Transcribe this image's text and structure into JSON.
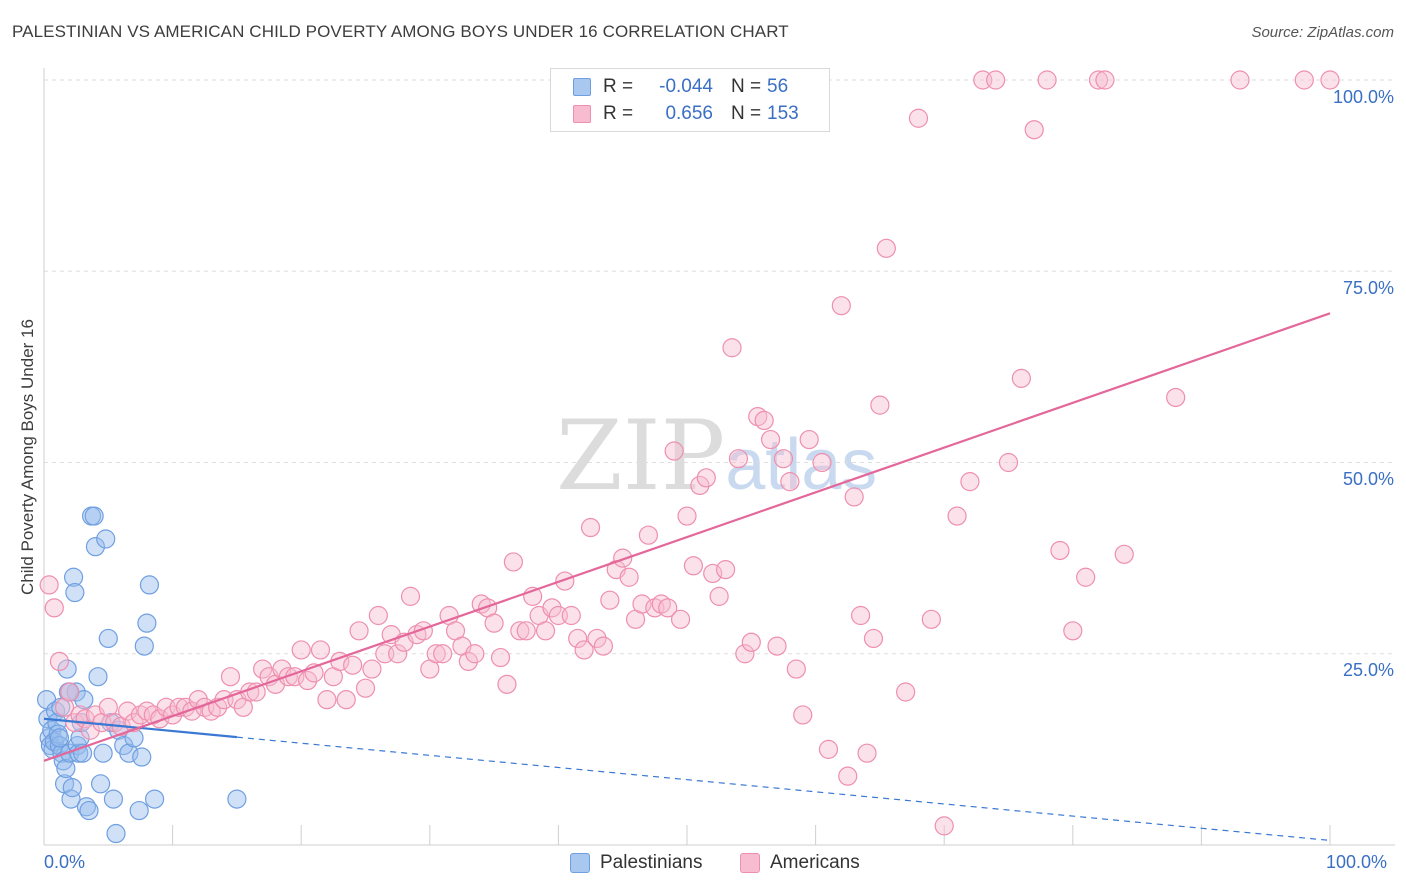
{
  "title": "PALESTINIAN VS AMERICAN CHILD POVERTY AMONG BOYS UNDER 16 CORRELATION CHART",
  "source": "Source: ZipAtlas.com",
  "watermark": {
    "zip": "ZIP",
    "atlas": "atlas"
  },
  "legend": {
    "rows": [
      {
        "r_label": "R =",
        "r_value": "-0.044",
        "n_label": "N =",
        "n_value": "56",
        "color": "#a9c8f0",
        "border": "#6f9fe0"
      },
      {
        "r_label": "R =",
        "r_value": "0.656",
        "n_label": "N =",
        "n_value": "153",
        "color": "#f7bcd0",
        "border": "#ee8fae"
      }
    ]
  },
  "bottom_legend": [
    {
      "label": "Palestinians",
      "color": "#a9c8f0",
      "border": "#6f9fe0"
    },
    {
      "label": "Americans",
      "color": "#f7bcd0",
      "border": "#ee8fae"
    }
  ],
  "chart_data": {
    "type": "scatter",
    "title": "PALESTINIAN VS AMERICAN CHILD POVERTY AMONG BOYS UNDER 16 CORRELATION CHART",
    "xlabel": "",
    "ylabel": "Child Poverty Among Boys Under 16",
    "xlim": [
      0,
      100
    ],
    "ylim": [
      0,
      100
    ],
    "x_tick_labels": [
      "0.0%",
      "100.0%"
    ],
    "y_tick_labels": [
      "25.0%",
      "50.0%",
      "75.0%",
      "100.0%"
    ],
    "y_tick_values": [
      25,
      50,
      75,
      100
    ],
    "grid": true,
    "series": [
      {
        "name": "Palestinians",
        "color": "#6f9fe0",
        "fill": "rgba(150,188,238,0.45)",
        "trend": {
          "x0": 0,
          "y0": 16.5,
          "x1": 15,
          "y1": 14.1,
          "dashed_to_x": 100,
          "dashed_to_y": 0.6,
          "color": "#3a78d4"
        },
        "points": [
          [
            0.2,
            19
          ],
          [
            0.3,
            16.5
          ],
          [
            0.4,
            14
          ],
          [
            0.5,
            13
          ],
          [
            0.6,
            15
          ],
          [
            0.7,
            12.5
          ],
          [
            0.8,
            13.5
          ],
          [
            0.9,
            17.5
          ],
          [
            1.0,
            16
          ],
          [
            1.1,
            14.5
          ],
          [
            1.2,
            13
          ],
          [
            1.3,
            18
          ],
          [
            1.4,
            12
          ],
          [
            1.5,
            11
          ],
          [
            1.6,
            8
          ],
          [
            1.7,
            10
          ],
          [
            1.8,
            23
          ],
          [
            1.9,
            20
          ],
          [
            2.0,
            12
          ],
          [
            2.1,
            6
          ],
          [
            2.2,
            7.5
          ],
          [
            2.3,
            35
          ],
          [
            2.4,
            33
          ],
          [
            2.5,
            20
          ],
          [
            2.6,
            13
          ],
          [
            2.7,
            12
          ],
          [
            2.8,
            14
          ],
          [
            2.9,
            16
          ],
          [
            3.0,
            12
          ],
          [
            3.1,
            19
          ],
          [
            3.3,
            5
          ],
          [
            3.5,
            4.5
          ],
          [
            3.7,
            43
          ],
          [
            3.9,
            43
          ],
          [
            4.0,
            39
          ],
          [
            4.2,
            22
          ],
          [
            4.4,
            8
          ],
          [
            4.6,
            12
          ],
          [
            4.8,
            40
          ],
          [
            5.0,
            27
          ],
          [
            5.2,
            16
          ],
          [
            5.4,
            6
          ],
          [
            5.6,
            1.5
          ],
          [
            5.8,
            15
          ],
          [
            6.2,
            13
          ],
          [
            6.6,
            12
          ],
          [
            7.0,
            14
          ],
          [
            7.4,
            4.5
          ],
          [
            7.6,
            11.5
          ],
          [
            7.8,
            26
          ],
          [
            8.0,
            29
          ],
          [
            8.2,
            34
          ],
          [
            8.6,
            6
          ],
          [
            15.0,
            6
          ],
          [
            1.2,
            14
          ],
          [
            2.0,
            20
          ]
        ]
      },
      {
        "name": "Americans",
        "color": "#ee8fae",
        "fill": "rgba(247,188,208,0.45)",
        "trend": {
          "x0": 0,
          "y0": 11,
          "x1": 100,
          "y1": 69.5,
          "color": "#e4679a"
        },
        "points": [
          [
            0.4,
            34
          ],
          [
            0.8,
            31
          ],
          [
            1.2,
            24
          ],
          [
            1.6,
            18
          ],
          [
            2.0,
            20
          ],
          [
            2.4,
            16
          ],
          [
            2.8,
            17
          ],
          [
            3.2,
            16.5
          ],
          [
            3.6,
            15
          ],
          [
            4.0,
            17
          ],
          [
            4.5,
            16
          ],
          [
            5.0,
            18
          ],
          [
            5.5,
            16
          ],
          [
            6.0,
            15.5
          ],
          [
            6.5,
            17.5
          ],
          [
            7.0,
            16
          ],
          [
            7.5,
            17
          ],
          [
            8.0,
            17.5
          ],
          [
            8.5,
            17
          ],
          [
            9.0,
            16.5
          ],
          [
            9.5,
            18
          ],
          [
            10.0,
            17
          ],
          [
            10.5,
            18
          ],
          [
            11.0,
            18
          ],
          [
            11.5,
            17.5
          ],
          [
            12.0,
            19
          ],
          [
            12.5,
            18
          ],
          [
            13.0,
            17.5
          ],
          [
            13.5,
            18
          ],
          [
            14.0,
            19
          ],
          [
            14.5,
            22
          ],
          [
            15.0,
            19
          ],
          [
            15.5,
            18
          ],
          [
            16.0,
            20
          ],
          [
            16.5,
            20
          ],
          [
            17.0,
            23
          ],
          [
            17.5,
            22
          ],
          [
            18.0,
            21
          ],
          [
            18.5,
            23
          ],
          [
            19.0,
            22
          ],
          [
            19.5,
            22
          ],
          [
            20.0,
            25.5
          ],
          [
            20.5,
            21.5
          ],
          [
            21.0,
            22.5
          ],
          [
            21.5,
            25.5
          ],
          [
            22.0,
            19
          ],
          [
            22.5,
            22
          ],
          [
            23.0,
            24
          ],
          [
            23.5,
            19
          ],
          [
            24.0,
            23.5
          ],
          [
            24.5,
            28
          ],
          [
            25.0,
            20.5
          ],
          [
            25.5,
            23
          ],
          [
            26.0,
            30
          ],
          [
            26.5,
            25
          ],
          [
            27.0,
            27.5
          ],
          [
            27.5,
            25
          ],
          [
            28.0,
            26.5
          ],
          [
            28.5,
            32.5
          ],
          [
            29.0,
            27.5
          ],
          [
            29.5,
            28
          ],
          [
            30.0,
            23
          ],
          [
            30.5,
            25
          ],
          [
            31.0,
            25
          ],
          [
            31.5,
            30
          ],
          [
            32.0,
            28
          ],
          [
            32.5,
            26
          ],
          [
            33.0,
            24
          ],
          [
            33.5,
            25
          ],
          [
            34.0,
            31.5
          ],
          [
            34.5,
            31
          ],
          [
            35.0,
            29
          ],
          [
            35.5,
            24.5
          ],
          [
            36.0,
            21
          ],
          [
            36.5,
            37
          ],
          [
            37.0,
            28
          ],
          [
            37.5,
            28
          ],
          [
            38.0,
            32.5
          ],
          [
            38.5,
            30
          ],
          [
            39.0,
            28
          ],
          [
            39.5,
            31
          ],
          [
            40.0,
            30
          ],
          [
            40.5,
            34.5
          ],
          [
            41.0,
            30
          ],
          [
            41.5,
            27
          ],
          [
            42.0,
            25.5
          ],
          [
            42.5,
            41.5
          ],
          [
            43.0,
            27
          ],
          [
            43.5,
            26
          ],
          [
            44.0,
            32
          ],
          [
            44.5,
            36
          ],
          [
            45.0,
            37.5
          ],
          [
            45.5,
            35
          ],
          [
            46.0,
            29.5
          ],
          [
            46.5,
            31.5
          ],
          [
            47.0,
            40.5
          ],
          [
            47.5,
            31
          ],
          [
            48.0,
            31.5
          ],
          [
            48.5,
            31
          ],
          [
            49.0,
            51.5
          ],
          [
            49.5,
            29.5
          ],
          [
            50.0,
            43
          ],
          [
            50.5,
            36.5
          ],
          [
            51.0,
            47
          ],
          [
            51.5,
            48
          ],
          [
            52.0,
            35.5
          ],
          [
            52.5,
            32.5
          ],
          [
            53.0,
            36
          ],
          [
            53.5,
            65
          ],
          [
            54.0,
            50.5
          ],
          [
            54.5,
            25
          ],
          [
            55.0,
            26.5
          ],
          [
            55.5,
            56
          ],
          [
            56.0,
            55.5
          ],
          [
            56.5,
            53
          ],
          [
            57.0,
            26
          ],
          [
            57.5,
            50.5
          ],
          [
            58.0,
            47.5
          ],
          [
            58.5,
            23
          ],
          [
            59.0,
            17
          ],
          [
            59.5,
            53
          ],
          [
            60.5,
            50
          ],
          [
            61.0,
            12.5
          ],
          [
            62.0,
            70.5
          ],
          [
            62.5,
            9
          ],
          [
            63.0,
            45.5
          ],
          [
            63.5,
            30
          ],
          [
            64.0,
            12
          ],
          [
            64.5,
            27
          ],
          [
            65.0,
            57.5
          ],
          [
            65.5,
            78
          ],
          [
            67.0,
            20
          ],
          [
            68.0,
            95
          ],
          [
            69.0,
            29.5
          ],
          [
            70.0,
            2.5
          ],
          [
            71.0,
            43
          ],
          [
            72.0,
            47.5
          ],
          [
            73.0,
            100
          ],
          [
            74.0,
            100
          ],
          [
            75.0,
            50
          ],
          [
            76.0,
            61
          ],
          [
            77.0,
            93.5
          ],
          [
            78.0,
            100
          ],
          [
            79.0,
            38.5
          ],
          [
            80.0,
            28
          ],
          [
            81.0,
            35
          ],
          [
            82.0,
            100
          ],
          [
            82.5,
            100
          ],
          [
            84.0,
            38
          ],
          [
            88.0,
            58.5
          ],
          [
            93.0,
            100
          ],
          [
            98.0,
            100
          ],
          [
            100.0,
            100
          ]
        ]
      }
    ]
  }
}
